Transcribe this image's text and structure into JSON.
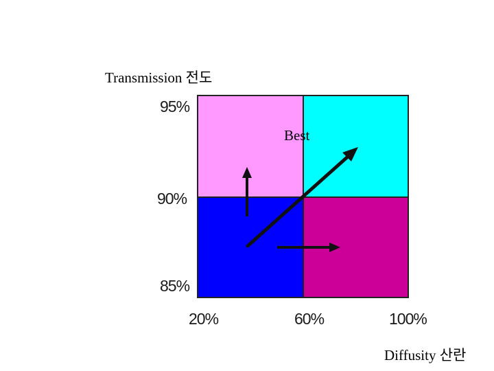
{
  "y_axis": {
    "title": "Transmission 전도",
    "ticks": [
      "95%",
      "90%",
      "85%"
    ]
  },
  "x_axis": {
    "title": "Diffusity 산란",
    "ticks": [
      "20%",
      "60%",
      "100%"
    ]
  },
  "quadrants": {
    "top_left": {
      "color": "#ff99ff"
    },
    "top_right": {
      "color": "#00ffff"
    },
    "bottom_left": {
      "color": "#0000ff"
    },
    "bottom_right": {
      "color": "#cc0099"
    }
  },
  "annotation": {
    "best_label": "Best"
  },
  "arrows": [
    {
      "name": "diagonal-arrow-to-best",
      "direction": "up-right"
    },
    {
      "name": "vertical-arrow-up",
      "direction": "up"
    },
    {
      "name": "horizontal-arrow-right",
      "direction": "right"
    }
  ],
  "colors": {
    "arrow": "#111111",
    "border": "#222222"
  }
}
